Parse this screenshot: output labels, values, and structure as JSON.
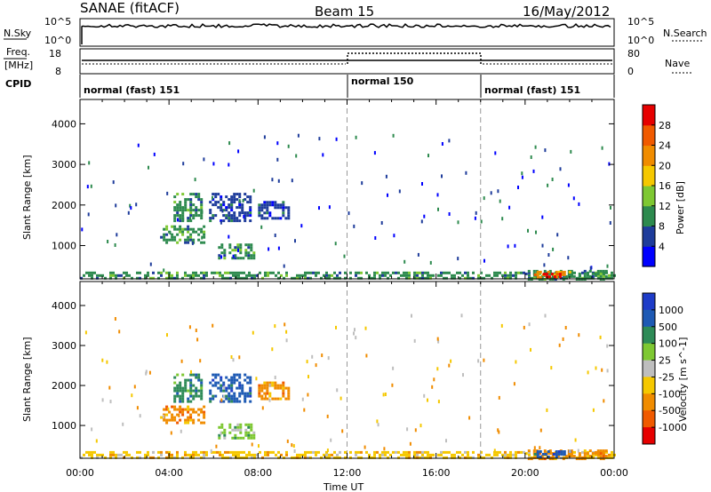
{
  "header": {
    "station": "SANAE (fitACF)",
    "beam": "Beam 15",
    "date": "16/May/2012"
  },
  "top_panels": {
    "nsky_label": "N.Sky",
    "nsearch_label": "N.Search",
    "nsky_ticks": [
      "10^5",
      "10^0"
    ],
    "nsearch_ticks": [
      "10^5",
      "10^0"
    ],
    "freq_label_1": "Freq.",
    "freq_label_2": "[MHz]",
    "freq_ticks": [
      "18",
      "8"
    ],
    "nave_label": "Nave",
    "nave_ticks": [
      "80",
      "0"
    ],
    "cpid_label": "CPID",
    "cpid_segments": [
      {
        "label": "normal (fast) 151",
        "start_hour": 0,
        "end_hour": 12
      },
      {
        "label": "normal 150",
        "start_hour": 12,
        "end_hour": 18
      },
      {
        "label": "normal (fast) 151",
        "start_hour": 18,
        "end_hour": 24
      }
    ]
  },
  "chart_data": [
    {
      "type": "heatmap",
      "title": "",
      "xlabel": "Time UT",
      "ylabel": "Slant Range [km]",
      "xlim": [
        0,
        24
      ],
      "ylim": [
        180,
        4600
      ],
      "x_tick_labels": [
        "00:00",
        "04:00",
        "08:00",
        "12:00",
        "16:00",
        "20:00",
        "00:00"
      ],
      "y_ticks": [
        1000,
        2000,
        3000,
        4000
      ],
      "colorbar": {
        "label": "Power [dB]",
        "ticks": [
          "4",
          "8",
          "12",
          "16",
          "20",
          "24",
          "28"
        ],
        "colors": [
          "#0000ff",
          "#1e3c9b",
          "#2d8a4e",
          "#7ec832",
          "#f5c800",
          "#f08c00",
          "#f05a00",
          "#e60000"
        ]
      },
      "regions": [
        {
          "t0": 0.0,
          "t1": 24.0,
          "r0": 180,
          "r1": 360,
          "level": 2
        },
        {
          "t0": 3.6,
          "t1": 5.6,
          "r0": 1100,
          "r1": 1500,
          "level": 2
        },
        {
          "t0": 4.2,
          "t1": 5.4,
          "r0": 1600,
          "r1": 2300,
          "level": 2
        },
        {
          "t0": 5.8,
          "t1": 7.6,
          "r0": 1600,
          "r1": 2300,
          "level": 1
        },
        {
          "t0": 6.2,
          "t1": 7.8,
          "r0": 700,
          "r1": 1050,
          "level": 2
        },
        {
          "t0": 8.0,
          "t1": 9.4,
          "r0": 1650,
          "r1": 2100,
          "level": 1
        },
        {
          "t0": 20.0,
          "t1": 23.6,
          "r0": 180,
          "r1": 400,
          "level": 2
        },
        {
          "t0": 20.4,
          "t1": 22.0,
          "r0": 240,
          "r1": 380,
          "level": 5
        },
        {
          "t0": 20.8,
          "t1": 21.6,
          "r0": 240,
          "r1": 330,
          "level": 7
        }
      ]
    },
    {
      "type": "heatmap",
      "title": "",
      "xlabel": "Time UT",
      "ylabel": "Slant Range [km]",
      "xlim": [
        0,
        24
      ],
      "ylim": [
        180,
        4600
      ],
      "x_tick_labels": [
        "00:00",
        "04:00",
        "08:00",
        "12:00",
        "16:00",
        "20:00",
        "00:00"
      ],
      "y_ticks": [
        1000,
        2000,
        3000,
        4000
      ],
      "colorbar": {
        "label": "Velocity [m s^-1]",
        "ticks": [
          "1000",
          "500",
          "100",
          "25",
          "-25",
          "-100",
          "-500",
          "-1000"
        ],
        "colors": [
          "#1e3cc8",
          "#1e5ab4",
          "#2e8b57",
          "#7ec832",
          "#bebebe",
          "#f5c800",
          "#f08c00",
          "#f05a00",
          "#e60000"
        ]
      },
      "regions": [
        {
          "t0": 0.0,
          "t1": 24.0,
          "r0": 180,
          "r1": 360,
          "level": 5
        },
        {
          "t0": 3.6,
          "t1": 5.6,
          "r0": 1100,
          "r1": 1500,
          "level": 6
        },
        {
          "t0": 4.2,
          "t1": 5.4,
          "r0": 1600,
          "r1": 2300,
          "level": 2
        },
        {
          "t0": 5.8,
          "t1": 7.6,
          "r0": 1600,
          "r1": 2300,
          "level": 1
        },
        {
          "t0": 6.2,
          "t1": 7.8,
          "r0": 700,
          "r1": 1050,
          "level": 3
        },
        {
          "t0": 8.0,
          "t1": 9.4,
          "r0": 1650,
          "r1": 2100,
          "level": 6
        },
        {
          "t0": 20.0,
          "t1": 23.6,
          "r0": 180,
          "r1": 400,
          "level": 6
        },
        {
          "t0": 20.4,
          "t1": 22.0,
          "r0": 240,
          "r1": 380,
          "level": 1
        }
      ]
    }
  ]
}
